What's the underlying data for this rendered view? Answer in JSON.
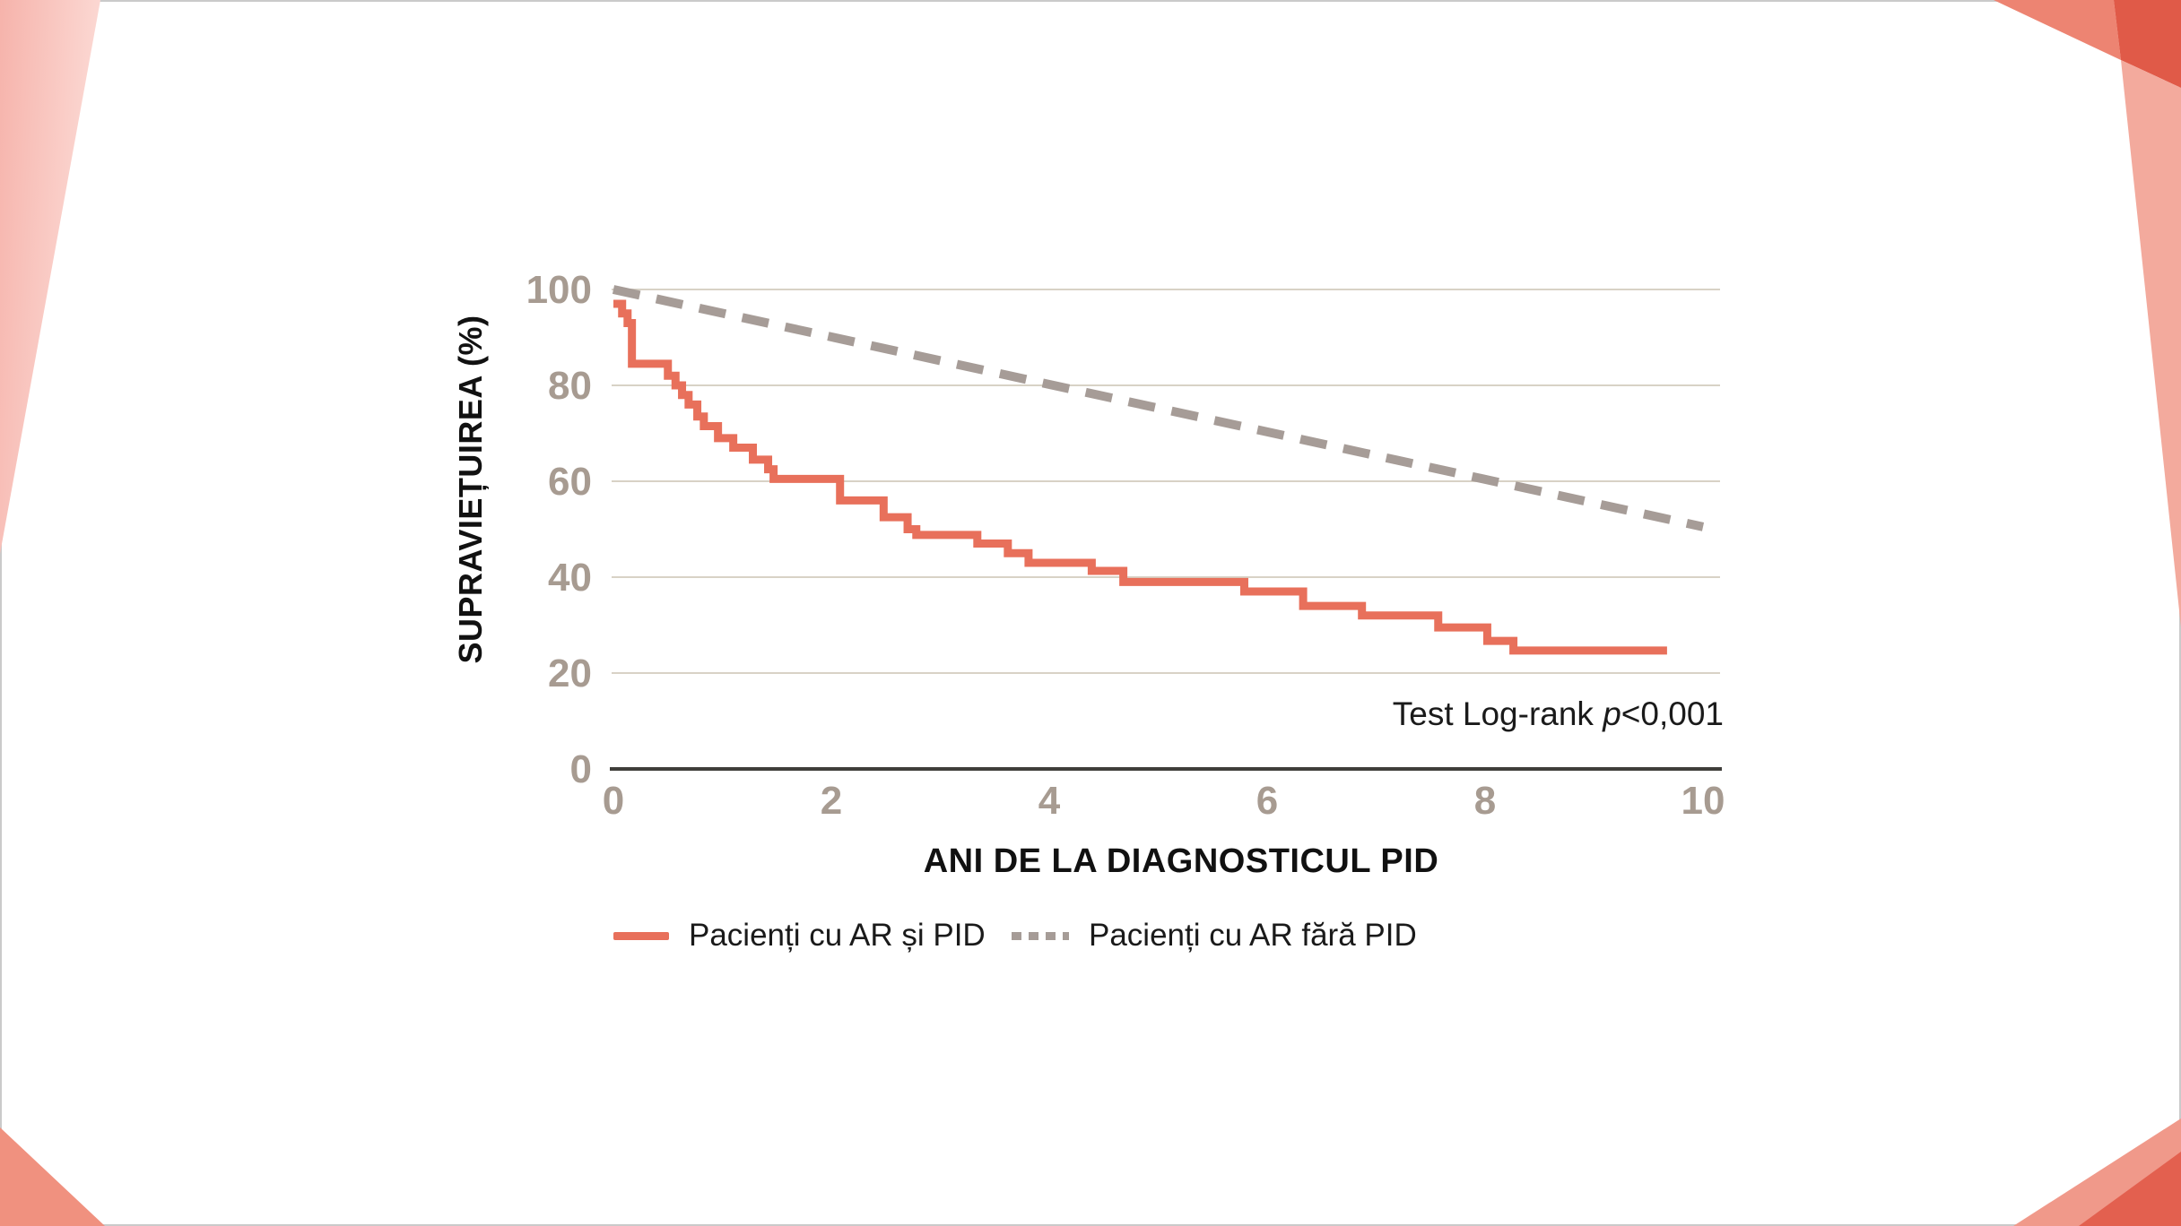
{
  "slide": {
    "background": "#ffffff",
    "border_color": "#cacaca"
  },
  "colors": {
    "accent_salmon": "#E8705B",
    "dashed_gray": "#A69C97",
    "tick_label": "#A79B91",
    "gridline": "#D8D2C6",
    "axis_line": "#3F3E3A",
    "text_black": "#111111",
    "decor_topleft_start": "#F6B3AB",
    "decor_topleft_end": "#FCDCD7",
    "decor_bottomleft": "#F0917F",
    "decor_topright_medium": "#ED8472",
    "decor_topright_dark": "#E05A48",
    "decor_topright_light": "#F3AA9D",
    "decor_bottomright_light": "#F0998A",
    "decor_bottomright_dark": "#E3604F"
  },
  "chart_data": {
    "type": "line",
    "subtype": "kaplan-meier-survival-step",
    "title": "",
    "xlabel": "ANI DE LA DIAGNOSTICUL PID",
    "ylabel": "SUPRAVIEȚUIREA (%)",
    "xlim": [
      0,
      10
    ],
    "ylim": [
      0,
      100
    ],
    "x_ticks": [
      "0",
      "2",
      "4",
      "6",
      "8",
      "10"
    ],
    "x_tick_values": [
      0,
      2,
      4,
      6,
      8,
      10
    ],
    "y_ticks": [
      "100",
      "80",
      "60",
      "40",
      "20",
      "0"
    ],
    "y_tick_values": [
      100,
      80,
      60,
      40,
      20,
      0
    ],
    "y_gridline_values": [
      20,
      40,
      60,
      80,
      100
    ],
    "grid": "horizontal",
    "legend_position": "bottom",
    "annotation": {
      "prefix": "Test Log-rank ",
      "p": "p",
      "value": "<0,001"
    },
    "series": [
      {
        "name": "Pacienți cu AR și PID",
        "line_style": "solid",
        "draw": "step",
        "color": "#E8705B",
        "stroke_width": 9,
        "end_x": 9.67,
        "points": [
          [
            0,
            97
          ],
          [
            0.08,
            95
          ],
          [
            0.13,
            93
          ],
          [
            0.17,
            84.5
          ],
          [
            0.5,
            82
          ],
          [
            0.57,
            80
          ],
          [
            0.63,
            78
          ],
          [
            0.69,
            76
          ],
          [
            0.77,
            73.5
          ],
          [
            0.83,
            71.5
          ],
          [
            0.96,
            69
          ],
          [
            1.1,
            67
          ],
          [
            1.28,
            64.5
          ],
          [
            1.42,
            62.5
          ],
          [
            1.47,
            60.5
          ],
          [
            2.08,
            56
          ],
          [
            2.48,
            52.5
          ],
          [
            2.7,
            50
          ],
          [
            2.78,
            48.8
          ],
          [
            3.34,
            47
          ],
          [
            3.62,
            45
          ],
          [
            3.81,
            43
          ],
          [
            4.39,
            41.3
          ],
          [
            4.68,
            39
          ],
          [
            5.79,
            37
          ],
          [
            6.33,
            34
          ],
          [
            6.87,
            32
          ],
          [
            7.57,
            29.5
          ],
          [
            8.02,
            26.7
          ],
          [
            8.26,
            24.7
          ]
        ]
      },
      {
        "name": "Pacienți cu AR fără PID",
        "line_style": "dashed",
        "draw": "linear",
        "color": "#A69C97",
        "stroke_width": 10,
        "dash_array": "30 19",
        "points": [
          [
            0,
            100
          ],
          [
            10,
            50.5
          ]
        ]
      }
    ]
  }
}
